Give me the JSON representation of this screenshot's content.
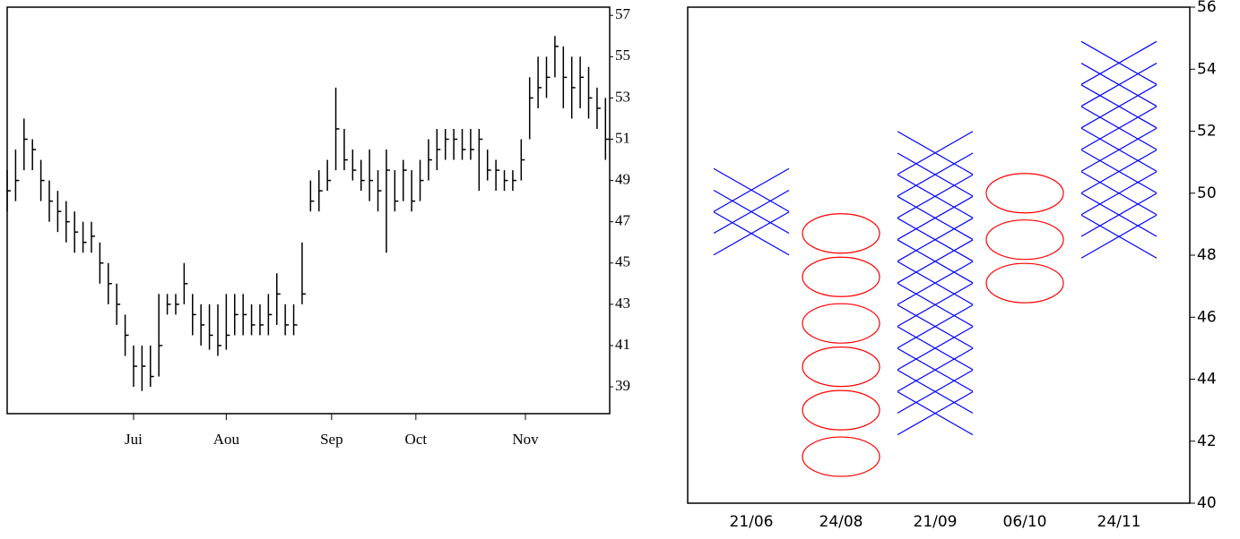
{
  "chart_data": [
    {
      "type": "ohlc",
      "color": "#000000",
      "x": [
        0,
        2,
        4,
        6,
        8,
        10,
        12,
        14,
        16,
        18,
        20,
        22,
        24,
        26,
        28,
        30,
        32,
        34,
        36,
        38,
        40,
        42,
        44,
        46,
        48,
        50,
        52,
        54,
        56,
        58,
        60,
        62,
        64,
        66,
        68,
        70,
        72,
        74,
        76,
        78,
        80,
        82,
        84,
        86,
        88,
        90,
        92,
        94,
        96,
        98,
        100,
        102,
        104,
        106,
        108,
        110,
        112,
        114,
        116,
        118,
        120,
        122,
        124,
        126,
        128,
        130,
        132,
        134,
        136,
        138,
        140,
        142
      ],
      "high": [
        49.5,
        50.5,
        52,
        51,
        50,
        49,
        48.5,
        48,
        47.5,
        47,
        47,
        46,
        45,
        44,
        42.5,
        41,
        41,
        41,
        43.5,
        43.5,
        43.5,
        45,
        43.5,
        43,
        43,
        43,
        43.5,
        43.5,
        43.5,
        43,
        43,
        43.5,
        44.5,
        43,
        43,
        46,
        49,
        49.5,
        50,
        53.5,
        51.5,
        50.5,
        50,
        50.5,
        49.5,
        50.5,
        49.5,
        50,
        49.5,
        50,
        51,
        51.5,
        51.5,
        51.5,
        51.5,
        51.5,
        51.5,
        50.5,
        50,
        49.5,
        49.5,
        51,
        54,
        55,
        55,
        56,
        55.5,
        55,
        55,
        54.5,
        53.5,
        53
      ],
      "low": [
        47.5,
        48,
        49.5,
        49.5,
        48,
        47,
        46.5,
        46,
        45.5,
        45.5,
        45.5,
        44,
        43,
        42,
        40.5,
        39,
        38.8,
        39,
        39.5,
        42.5,
        42.5,
        43,
        41.5,
        41,
        40.8,
        40.5,
        40.8,
        41.5,
        41.5,
        41.5,
        41.5,
        41.5,
        42,
        41.5,
        41.5,
        43,
        47.5,
        47.5,
        48.5,
        49.5,
        49.5,
        49,
        48.5,
        48,
        47.5,
        45.5,
        47.5,
        48,
        47.5,
        48,
        49,
        49.5,
        50,
        50,
        50,
        50,
        48.5,
        49,
        48.5,
        48.5,
        48.5,
        49,
        51,
        52.5,
        53,
        54,
        52.5,
        52,
        52.5,
        52,
        51.5,
        50
      ],
      "close": [
        48.5,
        49,
        51,
        50.5,
        49,
        48,
        47.5,
        47,
        46.5,
        46,
        46.3,
        45,
        44,
        43,
        41.5,
        40,
        40,
        39.5,
        41,
        43,
        43,
        44,
        42.5,
        42,
        41.5,
        41,
        41.5,
        42.5,
        42.5,
        42,
        42,
        42.5,
        43.5,
        42,
        42,
        43.5,
        48,
        48.5,
        49,
        51.5,
        50,
        49.5,
        49,
        49,
        48.5,
        49.5,
        48,
        49.5,
        48,
        49,
        50,
        50.5,
        51,
        51,
        50.5,
        50.5,
        51,
        49.5,
        49.5,
        49,
        49,
        50,
        53,
        53.5,
        54,
        55.5,
        54,
        53.5,
        54,
        53,
        52.5,
        51
      ],
      "xlim": [
        0,
        143
      ],
      "xticks": [
        {
          "value": 30,
          "label": "Jui"
        },
        {
          "value": 52,
          "label": "Aou"
        },
        {
          "value": 77,
          "label": "Sep"
        },
        {
          "value": 97,
          "label": "Oct"
        },
        {
          "value": 123,
          "label": "Nov"
        }
      ],
      "ylim": [
        37.7,
        57.4
      ],
      "yticks": [
        39,
        41,
        43,
        45,
        47,
        49,
        51,
        53,
        55,
        57
      ]
    },
    {
      "type": "point_and_figure",
      "categories": [
        "21/06",
        "24/08",
        "21/09",
        "06/10",
        "24/11"
      ],
      "columns": [
        {
          "symbol": "X",
          "color": "#0000ff",
          "values": [
            50.1,
            49.4,
            48.7
          ]
        },
        {
          "symbol": "O",
          "color": "#ff0000",
          "values": [
            48.7,
            47.3,
            45.8,
            44.4,
            43.0,
            41.5
          ]
        },
        {
          "symbol": "X",
          "color": "#0000ff",
          "values": [
            51.3,
            50.6,
            49.9,
            49.2,
            48.5,
            47.8,
            47.1,
            46.4,
            45.7,
            45.0,
            44.3,
            43.6,
            42.9
          ]
        },
        {
          "symbol": "O",
          "color": "#ff0000",
          "values": [
            50.0,
            48.5,
            47.1
          ]
        },
        {
          "symbol": "X",
          "color": "#0000ff",
          "values": [
            54.2,
            53.5,
            52.8,
            52.1,
            51.4,
            50.7,
            50.0,
            49.3,
            48.6
          ]
        }
      ],
      "ylim": [
        40,
        56
      ],
      "yticks": [
        40,
        42,
        44,
        46,
        48,
        50,
        52,
        54,
        56
      ]
    }
  ]
}
